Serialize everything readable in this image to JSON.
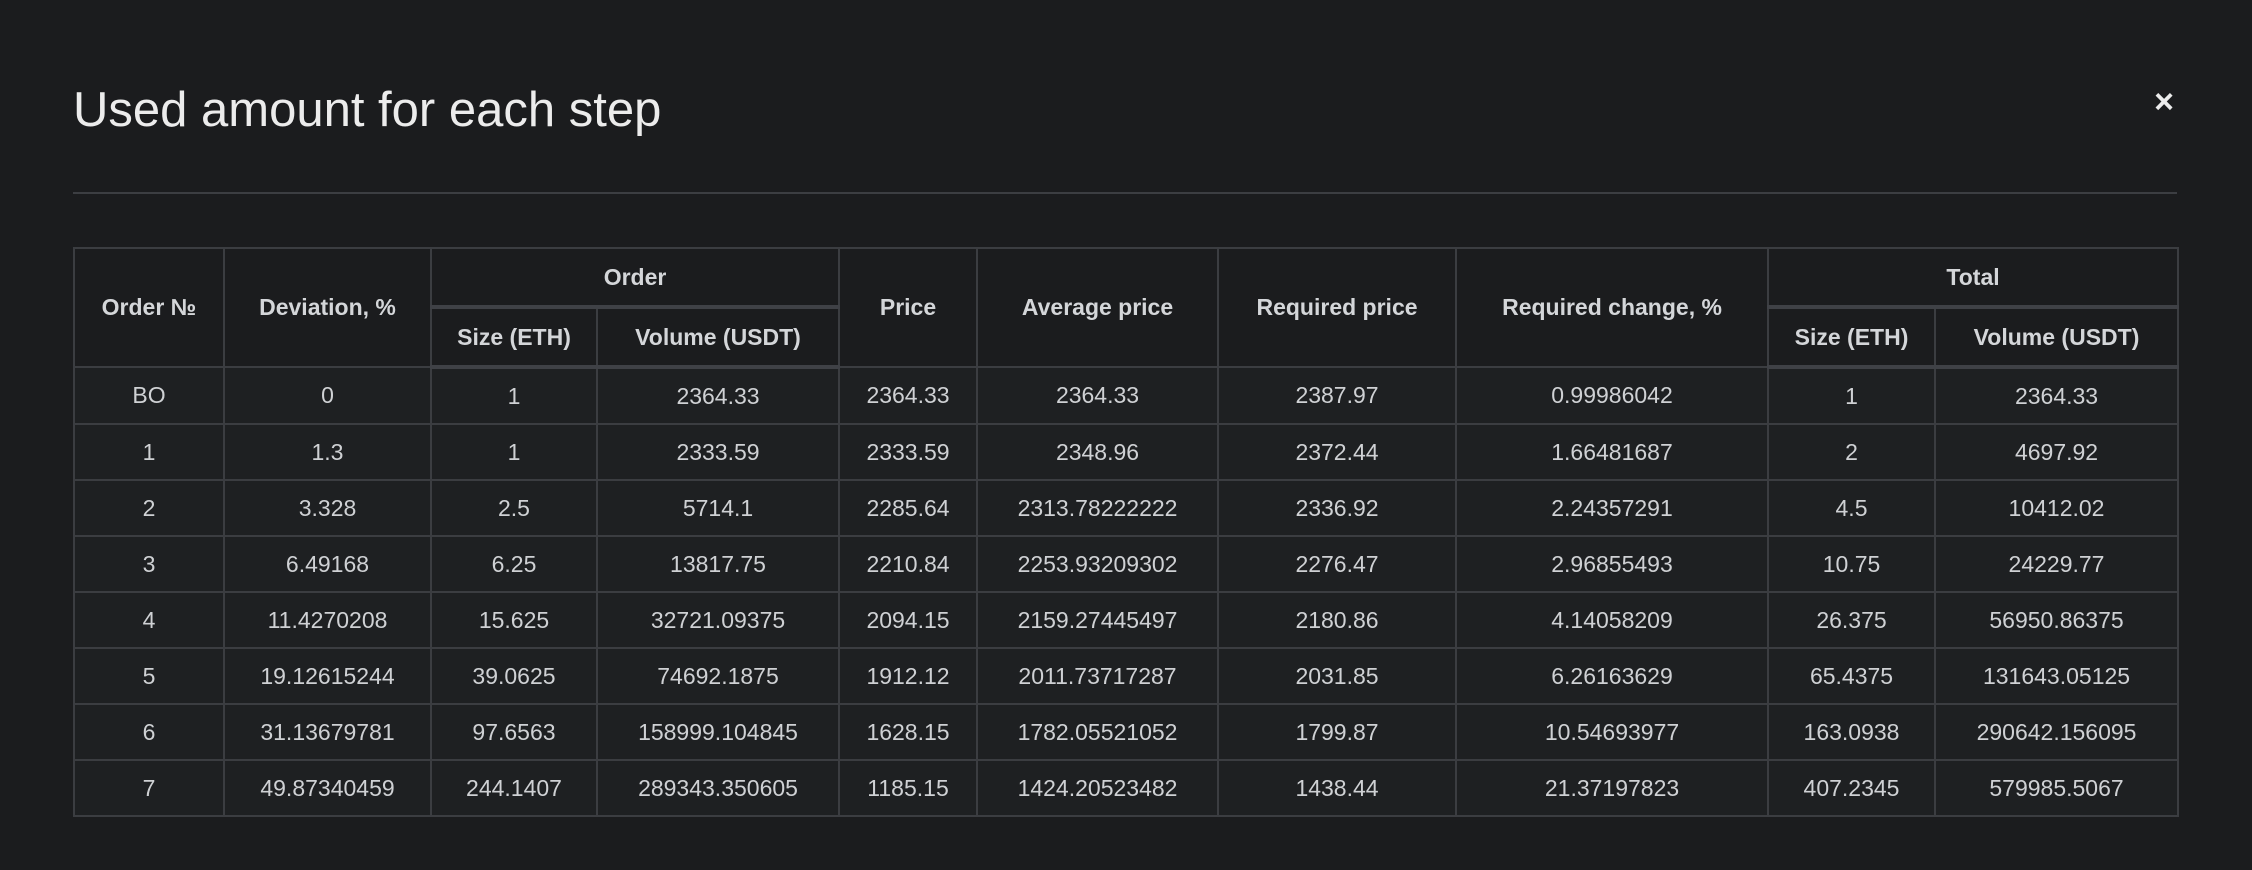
{
  "modal": {
    "title": "Used amount for each step",
    "close_label": "×"
  },
  "table": {
    "headers": {
      "order_no": "Order №",
      "deviation": "Deviation, %",
      "order_group": "Order",
      "order_size": "Size (ETH)",
      "order_volume": "Volume (USDT)",
      "price": "Price",
      "average_price": "Average price",
      "required_price": "Required price",
      "required_change": "Required change, %",
      "total_group": "Total",
      "total_size": "Size (ETH)",
      "total_volume": "Volume (USDT)"
    },
    "rows": [
      [
        "BO",
        "0",
        "1",
        "2364.33",
        "2364.33",
        "2364.33",
        "2387.97",
        "0.99986042",
        "1",
        "2364.33"
      ],
      [
        "1",
        "1.3",
        "1",
        "2333.59",
        "2333.59",
        "2348.96",
        "2372.44",
        "1.66481687",
        "2",
        "4697.92"
      ],
      [
        "2",
        "3.328",
        "2.5",
        "5714.1",
        "2285.64",
        "2313.78222222",
        "2336.92",
        "2.24357291",
        "4.5",
        "10412.02"
      ],
      [
        "3",
        "6.49168",
        "6.25",
        "13817.75",
        "2210.84",
        "2253.93209302",
        "2276.47",
        "2.96855493",
        "10.75",
        "24229.77"
      ],
      [
        "4",
        "11.4270208",
        "15.625",
        "32721.09375",
        "2094.15",
        "2159.27445497",
        "2180.86",
        "4.14058209",
        "26.375",
        "56950.86375"
      ],
      [
        "5",
        "19.12615244",
        "39.0625",
        "74692.1875",
        "1912.12",
        "2011.73717287",
        "2031.85",
        "6.26163629",
        "65.4375",
        "131643.05125"
      ],
      [
        "6",
        "31.13679781",
        "97.6563",
        "158999.104845",
        "1628.15",
        "1782.05521052",
        "1799.87",
        "10.54693977",
        "163.0938",
        "290642.156095"
      ],
      [
        "7",
        "49.87340459",
        "244.1407",
        "289343.350605",
        "1185.15",
        "1424.20523482",
        "1438.44",
        "21.37197823",
        "407.2345",
        "579985.5067"
      ]
    ]
  },
  "icons": {
    "close": "close-icon"
  }
}
